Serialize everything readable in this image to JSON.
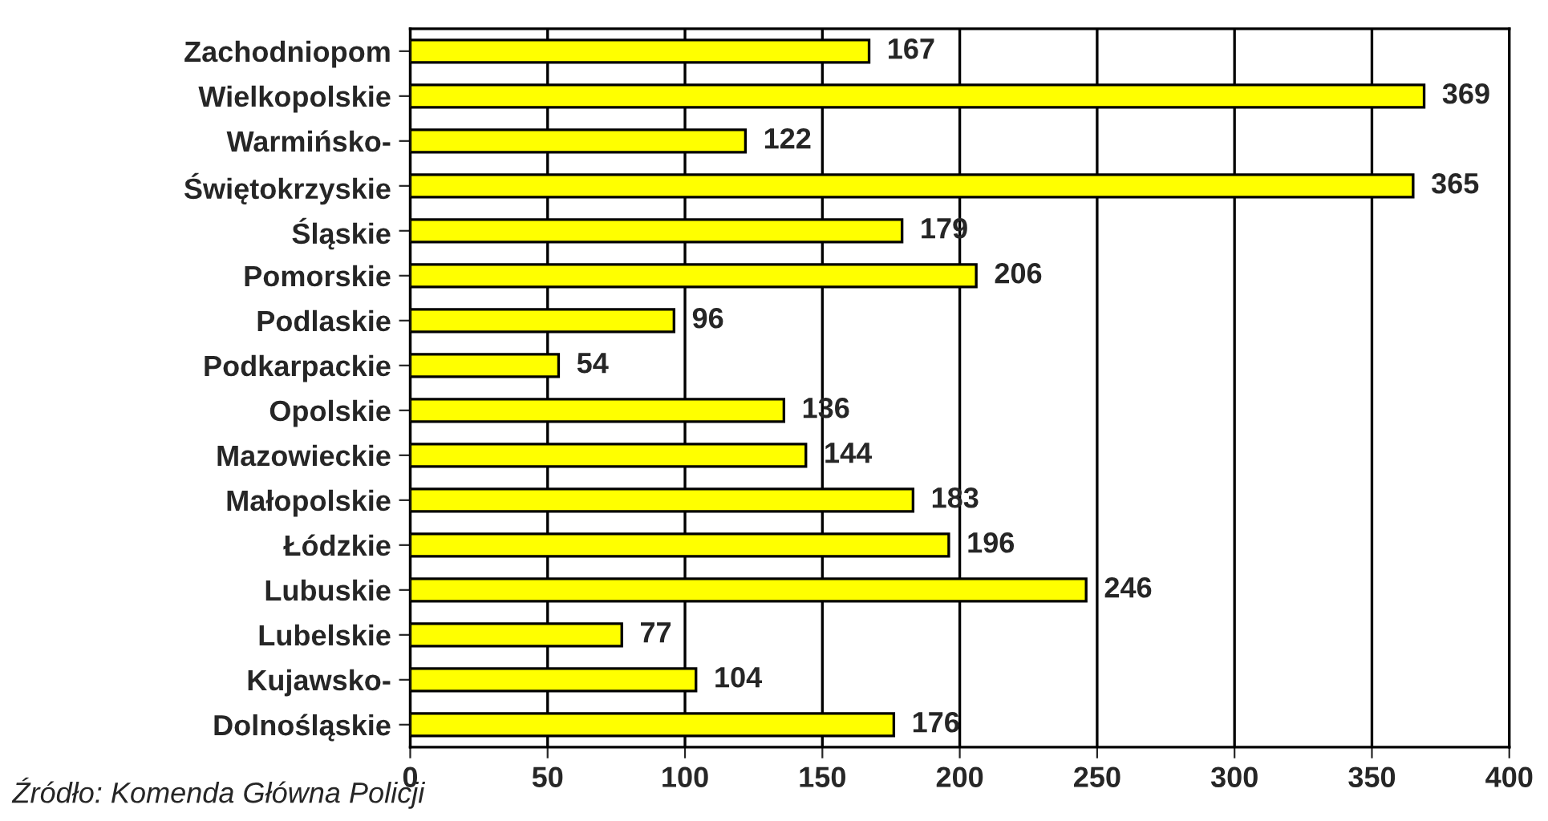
{
  "chart_data": {
    "type": "bar",
    "orientation": "horizontal",
    "categories": [
      "Zachodniopom",
      "Wielkopolskie",
      "Warmińsko-",
      "Świętokrzyskie",
      "Śląskie",
      "Pomorskie",
      "Podlaskie",
      "Podkarpackie",
      "Opolskie",
      "Mazowieckie",
      "Małopolskie",
      "Łódzkie",
      "Lubuskie",
      "Lubelskie",
      "Kujawsko-",
      "Dolnośląskie"
    ],
    "values": [
      167,
      369,
      122,
      365,
      179,
      206,
      96,
      54,
      136,
      144,
      183,
      196,
      246,
      77,
      104,
      176
    ],
    "color": "#ffff00",
    "xlim": [
      0,
      400
    ],
    "xticks": [
      0,
      50,
      100,
      150,
      200,
      250,
      300,
      350,
      400
    ],
    "grid": "x",
    "data_labels": true,
    "annotations": [
      "Źródło: Komenda Główna Policji"
    ]
  }
}
